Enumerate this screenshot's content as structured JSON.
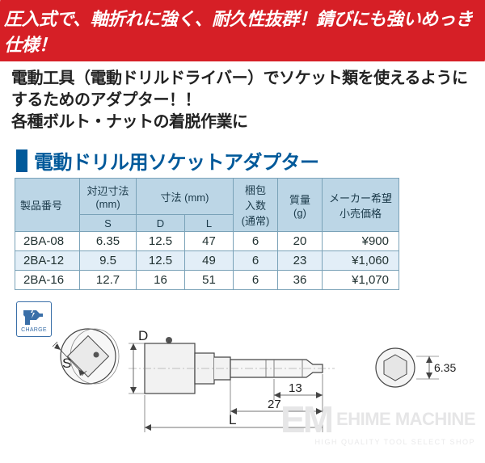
{
  "banner": "圧入式で、軸折れに強く、耐久性抜群！錆びにも強いめっき仕様！",
  "subhead": "電動工具（電動ドリルドライバー）でソケット類を使えるようにするためのアダプター！！\n各種ボルト・ナットの着脱作業に",
  "title": "電動ドリル用ソケットアダプター",
  "headers": {
    "pn": "製品番号",
    "s_group": "対辺寸法\n(mm)",
    "dim_group": "寸法 (mm)",
    "qty": "梱包\n入数\n(通常)",
    "mass": "質量\n(g)",
    "price": "メーカー希望\n小売価格",
    "s": "S",
    "d": "D",
    "l": "L"
  },
  "rows": [
    {
      "pn": "2BA-08",
      "s": "6.35",
      "d": "12.5",
      "l": "47",
      "q": "6",
      "m": "20",
      "p": "¥900",
      "hl": false
    },
    {
      "pn": "2BA-12",
      "s": "9.5",
      "d": "12.5",
      "l": "49",
      "q": "6",
      "m": "23",
      "p": "¥1,060",
      "hl": true
    },
    {
      "pn": "2BA-16",
      "s": "12.7",
      "d": "16",
      "l": "51",
      "q": "6",
      "m": "36",
      "p": "¥1,070",
      "hl": false
    }
  ],
  "charge": "CHARGE",
  "dims": {
    "s": "S",
    "d": "D",
    "l": "L",
    "a13": "13",
    "a27": "27",
    "a635": "6.35"
  },
  "watermark": {
    "em": "EM",
    "name": "EHIME MACHINE",
    "sub": "HIGH QUALITY TOOL SELECT SHOP"
  },
  "colors": {
    "red": "#d61f26",
    "blue": "#00599a",
    "th_bg": "#bcd6e6",
    "row_hl": "#e2eef7",
    "border": "#7aa2b8",
    "wm": "#e6e6e7"
  }
}
